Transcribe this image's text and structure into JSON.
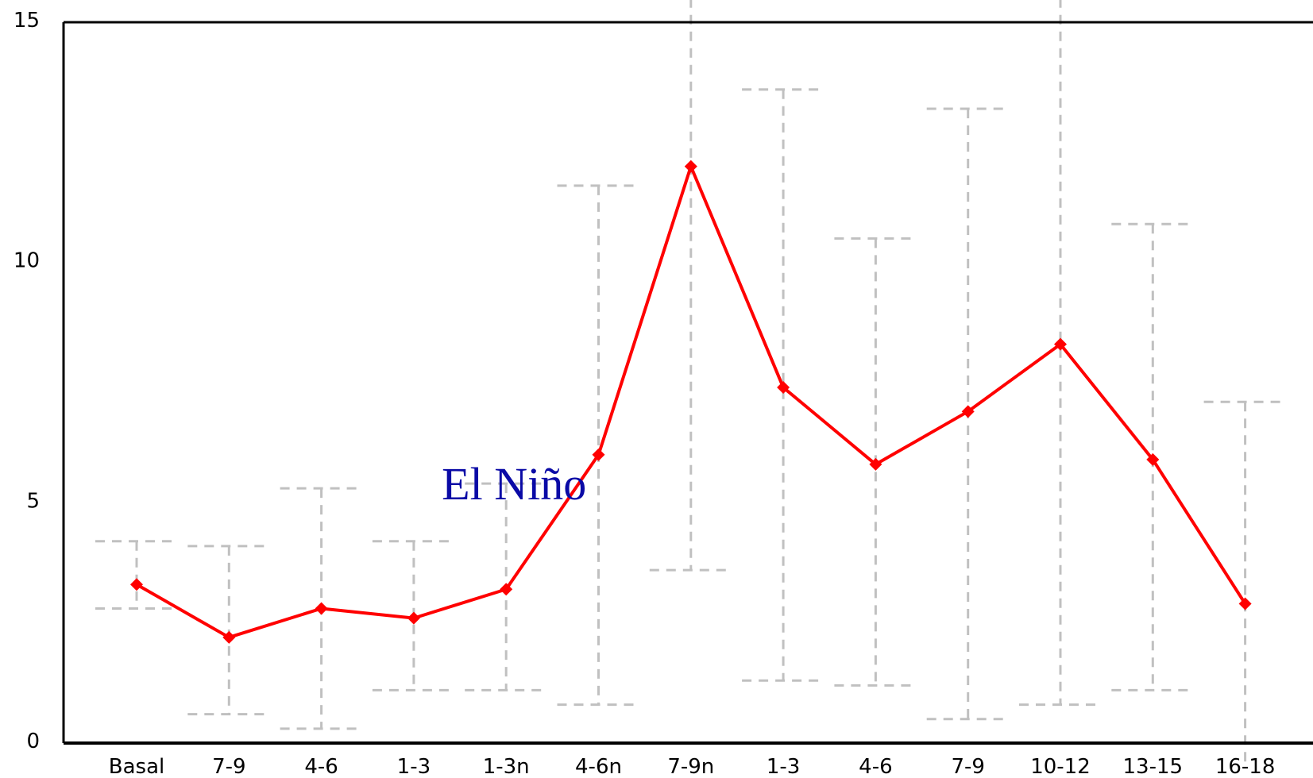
{
  "chart_data": {
    "type": "line",
    "categories": [
      "Basal",
      "7-9",
      "4-6",
      "1-3",
      "1-3n",
      "4-6n",
      "7-9n",
      "1-3",
      "4-6",
      "7-9",
      "10-12",
      "13-15",
      "16-18"
    ],
    "series": [
      {
        "values": [
          3.3,
          2.2,
          2.8,
          2.6,
          3.2,
          6.0,
          12.0,
          7.4,
          5.8,
          6.9,
          8.3,
          5.9,
          2.9
        ],
        "error_upper": [
          4.2,
          4.1,
          5.3,
          4.2,
          5.4,
          11.6,
          15.5,
          13.6,
          10.5,
          13.2,
          15.5,
          10.8,
          7.1
        ],
        "error_lower": [
          2.8,
          0.6,
          0.3,
          1.1,
          1.1,
          0.8,
          3.6,
          1.3,
          1.2,
          0.5,
          0.8,
          1.1,
          -0.5
        ]
      }
    ],
    "yticks": [
      "0",
      "5",
      "10",
      "15"
    ],
    "ylim": [
      0,
      15
    ],
    "xlabel": "",
    "ylabel": "",
    "grid": false,
    "annotations": [
      {
        "text": "El Niño",
        "x": "1-3n",
        "y": 5.4
      }
    ],
    "colors": {
      "line": "#ff0000",
      "error_bars": "#c0c0c0",
      "axis": "#000000",
      "annotation": "#0a0aa6"
    }
  }
}
